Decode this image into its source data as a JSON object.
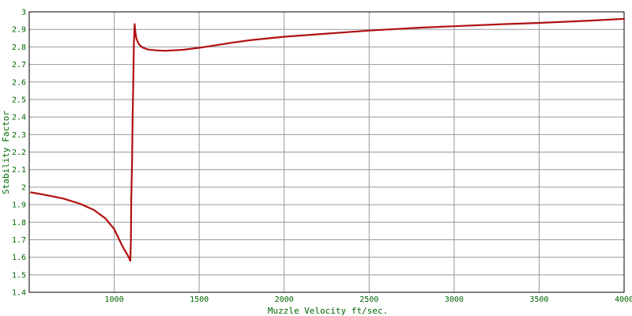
{
  "chart_data": {
    "type": "line",
    "title": "",
    "xlabel": "Muzzle Velocity ft/sec.",
    "ylabel": "Stability Factor",
    "xlim": [
      500,
      4000
    ],
    "ylim": [
      1.4,
      3.0
    ],
    "grid": true,
    "x_ticks": [
      1000,
      1500,
      2000,
      2500,
      3000,
      3500,
      4000
    ],
    "y_ticks": [
      1.4,
      1.5,
      1.6,
      1.7,
      1.8,
      1.9,
      2.0,
      2.1,
      2.2,
      2.3,
      2.4,
      2.5,
      2.6,
      2.7,
      2.8,
      2.9,
      3.0
    ],
    "x_tick_labels": [
      "1000",
      "1500",
      "2000",
      "2500",
      "3000",
      "3500",
      "4000"
    ],
    "y_tick_labels": [
      "1.4",
      "1.5",
      "1.6",
      "1.7",
      "1.8",
      "1.9",
      "2",
      "2.1",
      "2.2",
      "2.3",
      "2.4",
      "2.5",
      "2.6",
      "2.7",
      "2.8",
      "2.9",
      "3"
    ],
    "series": [
      {
        "color": "#b01010",
        "x": [
          510,
          600,
          700,
          800,
          880,
          950,
          1000,
          1050,
          1080,
          1095,
          1098,
          1100,
          1105,
          1108,
          1112,
          1116,
          1120,
          1125,
          1130,
          1140,
          1150,
          1170,
          1200,
          1250,
          1300,
          1400,
          1500,
          1600,
          1700,
          1800,
          2000,
          2200,
          2500,
          2800,
          3000,
          3300,
          3500,
          3800,
          4000
        ],
        "y": [
          1.97,
          1.955,
          1.935,
          1.905,
          1.87,
          1.82,
          1.76,
          1.66,
          1.61,
          1.58,
          1.7,
          1.92,
          2.15,
          2.37,
          2.6,
          2.82,
          2.93,
          2.88,
          2.85,
          2.825,
          2.81,
          2.795,
          2.785,
          2.78,
          2.778,
          2.783,
          2.795,
          2.81,
          2.825,
          2.838,
          2.858,
          2.872,
          2.893,
          2.91,
          2.918,
          2.93,
          2.937,
          2.95,
          2.96
        ]
      }
    ]
  }
}
